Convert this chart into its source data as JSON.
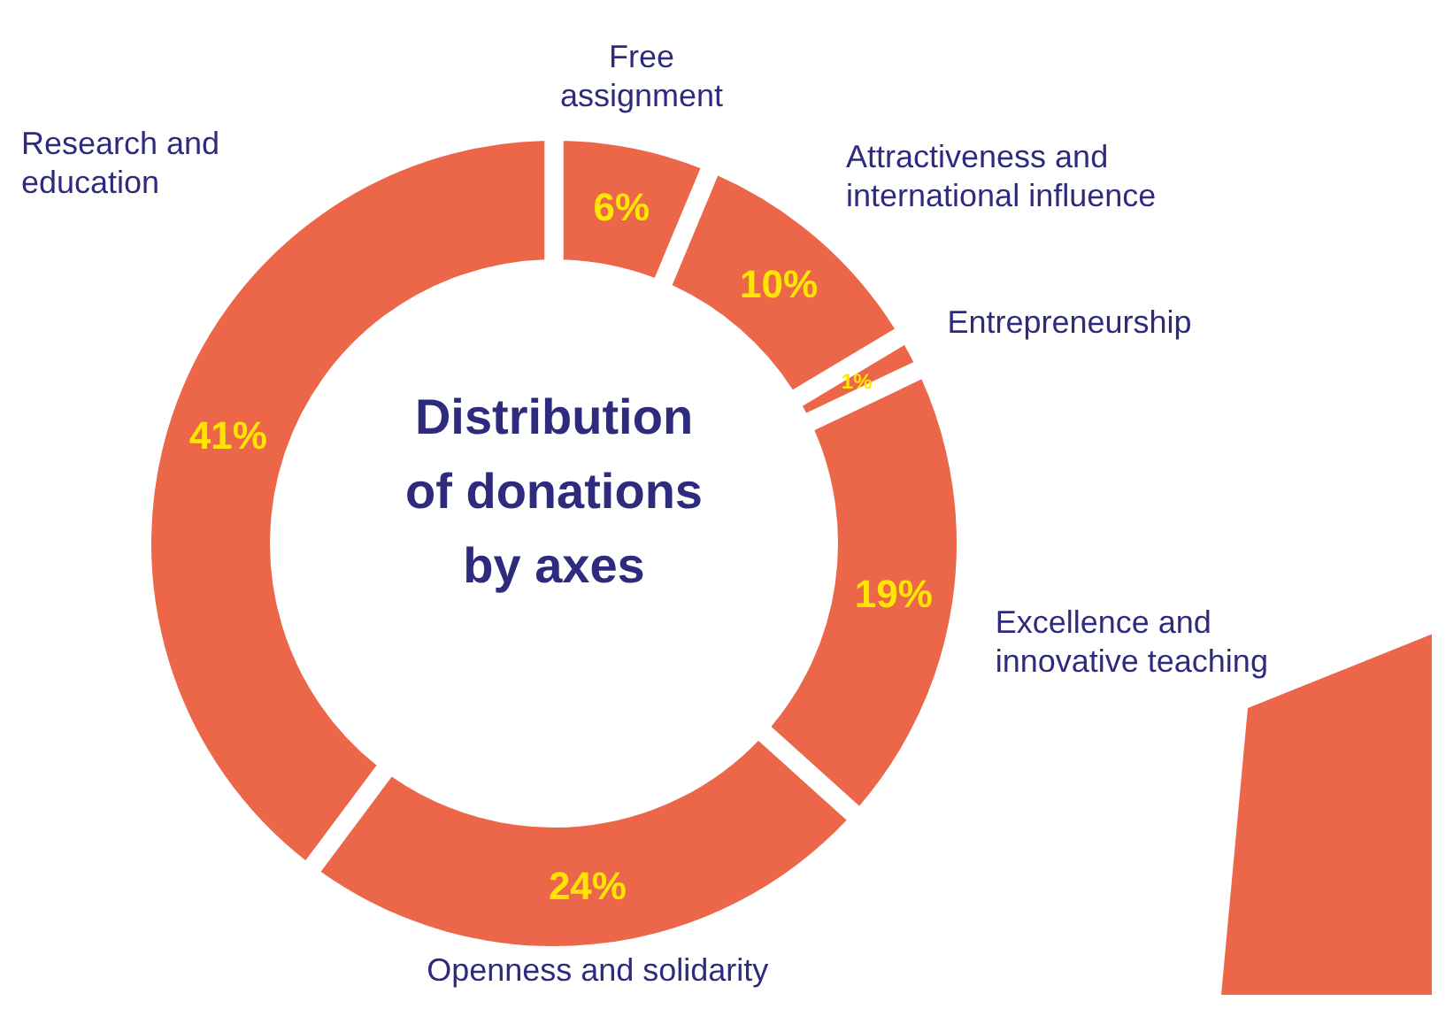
{
  "chart_data": {
    "type": "donut",
    "title": "Distribution of donations by axes",
    "categories": [
      "Free assignment",
      "Attractiveness and international influence",
      "Entrepreneurship",
      "Excellence and innovative teaching",
      "Openness and solidarity",
      "Research and education"
    ],
    "values": [
      6,
      10,
      1,
      19,
      24,
      41
    ],
    "colors": [
      "#ec6649",
      "#ec6649",
      "#ec6649",
      "#ec6649",
      "#ec6649",
      "#ec6649"
    ],
    "value_labels": [
      "6%",
      "10%",
      "1%",
      "19%",
      "24%",
      "41%"
    ]
  }
}
